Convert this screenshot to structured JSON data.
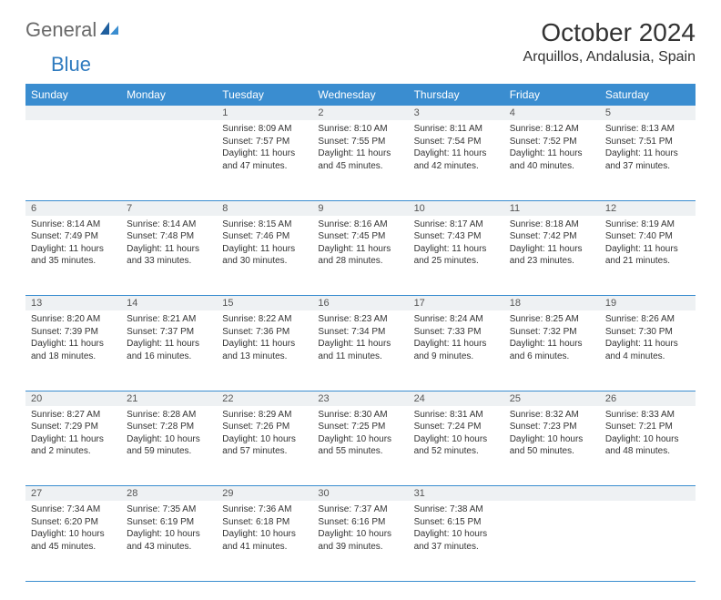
{
  "brand": {
    "name1": "General",
    "name2": "Blue"
  },
  "title": "October 2024",
  "location": "Arquillos, Andalusia, Spain",
  "colors": {
    "header_bg": "#3a8dd0",
    "header_text": "#ffffff",
    "daynum_bg": "#eef1f3",
    "border": "#3a8dd0",
    "brand_gray": "#6a6a6a",
    "brand_blue": "#2f7bbf"
  },
  "weekdays": [
    "Sunday",
    "Monday",
    "Tuesday",
    "Wednesday",
    "Thursday",
    "Friday",
    "Saturday"
  ],
  "weeks": [
    [
      null,
      null,
      {
        "n": "1",
        "sr": "Sunrise: 8:09 AM",
        "ss": "Sunset: 7:57 PM",
        "dl": "Daylight: 11 hours and 47 minutes."
      },
      {
        "n": "2",
        "sr": "Sunrise: 8:10 AM",
        "ss": "Sunset: 7:55 PM",
        "dl": "Daylight: 11 hours and 45 minutes."
      },
      {
        "n": "3",
        "sr": "Sunrise: 8:11 AM",
        "ss": "Sunset: 7:54 PM",
        "dl": "Daylight: 11 hours and 42 minutes."
      },
      {
        "n": "4",
        "sr": "Sunrise: 8:12 AM",
        "ss": "Sunset: 7:52 PM",
        "dl": "Daylight: 11 hours and 40 minutes."
      },
      {
        "n": "5",
        "sr": "Sunrise: 8:13 AM",
        "ss": "Sunset: 7:51 PM",
        "dl": "Daylight: 11 hours and 37 minutes."
      }
    ],
    [
      {
        "n": "6",
        "sr": "Sunrise: 8:14 AM",
        "ss": "Sunset: 7:49 PM",
        "dl": "Daylight: 11 hours and 35 minutes."
      },
      {
        "n": "7",
        "sr": "Sunrise: 8:14 AM",
        "ss": "Sunset: 7:48 PM",
        "dl": "Daylight: 11 hours and 33 minutes."
      },
      {
        "n": "8",
        "sr": "Sunrise: 8:15 AM",
        "ss": "Sunset: 7:46 PM",
        "dl": "Daylight: 11 hours and 30 minutes."
      },
      {
        "n": "9",
        "sr": "Sunrise: 8:16 AM",
        "ss": "Sunset: 7:45 PM",
        "dl": "Daylight: 11 hours and 28 minutes."
      },
      {
        "n": "10",
        "sr": "Sunrise: 8:17 AM",
        "ss": "Sunset: 7:43 PM",
        "dl": "Daylight: 11 hours and 25 minutes."
      },
      {
        "n": "11",
        "sr": "Sunrise: 8:18 AM",
        "ss": "Sunset: 7:42 PM",
        "dl": "Daylight: 11 hours and 23 minutes."
      },
      {
        "n": "12",
        "sr": "Sunrise: 8:19 AM",
        "ss": "Sunset: 7:40 PM",
        "dl": "Daylight: 11 hours and 21 minutes."
      }
    ],
    [
      {
        "n": "13",
        "sr": "Sunrise: 8:20 AM",
        "ss": "Sunset: 7:39 PM",
        "dl": "Daylight: 11 hours and 18 minutes."
      },
      {
        "n": "14",
        "sr": "Sunrise: 8:21 AM",
        "ss": "Sunset: 7:37 PM",
        "dl": "Daylight: 11 hours and 16 minutes."
      },
      {
        "n": "15",
        "sr": "Sunrise: 8:22 AM",
        "ss": "Sunset: 7:36 PM",
        "dl": "Daylight: 11 hours and 13 minutes."
      },
      {
        "n": "16",
        "sr": "Sunrise: 8:23 AM",
        "ss": "Sunset: 7:34 PM",
        "dl": "Daylight: 11 hours and 11 minutes."
      },
      {
        "n": "17",
        "sr": "Sunrise: 8:24 AM",
        "ss": "Sunset: 7:33 PM",
        "dl": "Daylight: 11 hours and 9 minutes."
      },
      {
        "n": "18",
        "sr": "Sunrise: 8:25 AM",
        "ss": "Sunset: 7:32 PM",
        "dl": "Daylight: 11 hours and 6 minutes."
      },
      {
        "n": "19",
        "sr": "Sunrise: 8:26 AM",
        "ss": "Sunset: 7:30 PM",
        "dl": "Daylight: 11 hours and 4 minutes."
      }
    ],
    [
      {
        "n": "20",
        "sr": "Sunrise: 8:27 AM",
        "ss": "Sunset: 7:29 PM",
        "dl": "Daylight: 11 hours and 2 minutes."
      },
      {
        "n": "21",
        "sr": "Sunrise: 8:28 AM",
        "ss": "Sunset: 7:28 PM",
        "dl": "Daylight: 10 hours and 59 minutes."
      },
      {
        "n": "22",
        "sr": "Sunrise: 8:29 AM",
        "ss": "Sunset: 7:26 PM",
        "dl": "Daylight: 10 hours and 57 minutes."
      },
      {
        "n": "23",
        "sr": "Sunrise: 8:30 AM",
        "ss": "Sunset: 7:25 PM",
        "dl": "Daylight: 10 hours and 55 minutes."
      },
      {
        "n": "24",
        "sr": "Sunrise: 8:31 AM",
        "ss": "Sunset: 7:24 PM",
        "dl": "Daylight: 10 hours and 52 minutes."
      },
      {
        "n": "25",
        "sr": "Sunrise: 8:32 AM",
        "ss": "Sunset: 7:23 PM",
        "dl": "Daylight: 10 hours and 50 minutes."
      },
      {
        "n": "26",
        "sr": "Sunrise: 8:33 AM",
        "ss": "Sunset: 7:21 PM",
        "dl": "Daylight: 10 hours and 48 minutes."
      }
    ],
    [
      {
        "n": "27",
        "sr": "Sunrise: 7:34 AM",
        "ss": "Sunset: 6:20 PM",
        "dl": "Daylight: 10 hours and 45 minutes."
      },
      {
        "n": "28",
        "sr": "Sunrise: 7:35 AM",
        "ss": "Sunset: 6:19 PM",
        "dl": "Daylight: 10 hours and 43 minutes."
      },
      {
        "n": "29",
        "sr": "Sunrise: 7:36 AM",
        "ss": "Sunset: 6:18 PM",
        "dl": "Daylight: 10 hours and 41 minutes."
      },
      {
        "n": "30",
        "sr": "Sunrise: 7:37 AM",
        "ss": "Sunset: 6:16 PM",
        "dl": "Daylight: 10 hours and 39 minutes."
      },
      {
        "n": "31",
        "sr": "Sunrise: 7:38 AM",
        "ss": "Sunset: 6:15 PM",
        "dl": "Daylight: 10 hours and 37 minutes."
      },
      null,
      null
    ]
  ]
}
